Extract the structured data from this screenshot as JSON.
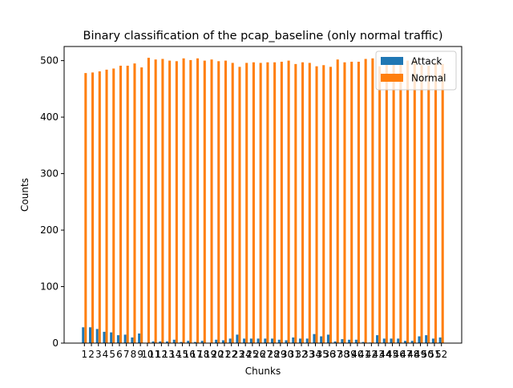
{
  "chart_data": {
    "type": "bar",
    "title": "Binary classification of the pcap_baseline (only normal traffic)",
    "xlabel": "Chunks",
    "ylabel": "Counts",
    "ylim": [
      0,
      525
    ],
    "yticks": [
      0,
      100,
      200,
      300,
      400,
      500
    ],
    "categories": [
      "1",
      "2",
      "3",
      "4",
      "5",
      "6",
      "7",
      "8",
      "9",
      "10",
      "11",
      "12",
      "13",
      "14",
      "15",
      "16",
      "17",
      "18",
      "19",
      "20",
      "21",
      "22",
      "23",
      "24",
      "25",
      "26",
      "27",
      "28",
      "29",
      "30",
      "31",
      "32",
      "33",
      "34",
      "35",
      "36",
      "37",
      "38",
      "39",
      "40",
      "41",
      "42",
      "43",
      "44",
      "45",
      "46",
      "47",
      "48",
      "49",
      "50",
      "51",
      "52"
    ],
    "series": [
      {
        "name": "Attack",
        "color": "#1f77b4",
        "values": [
          28,
          28,
          25,
          20,
          19,
          14,
          15,
          10,
          17,
          0,
          3,
          3,
          3,
          6,
          2,
          4,
          2,
          4,
          0,
          6,
          5,
          8,
          15,
          8,
          8,
          8,
          8,
          8,
          6,
          5,
          10,
          8,
          8,
          16,
          12,
          15,
          3,
          7,
          6,
          6,
          2,
          1,
          14,
          8,
          8,
          8,
          4,
          4,
          12,
          14,
          8,
          10
        ]
      },
      {
        "name": "Normal",
        "color": "#ff7f0e",
        "values": [
          478,
          479,
          481,
          484,
          486,
          491,
          491,
          495,
          488,
          505,
          502,
          503,
          500,
          499,
          504,
          501,
          504,
          500,
          502,
          499,
          500,
          496,
          489,
          496,
          497,
          496,
          497,
          497,
          498,
          500,
          494,
          497,
          496,
          490,
          492,
          489,
          502,
          497,
          498,
          498,
          503,
          504,
          490,
          496,
          497,
          496,
          500,
          500,
          492,
          491,
          496,
          494
        ]
      }
    ],
    "legend": {
      "position": "top-right"
    }
  }
}
